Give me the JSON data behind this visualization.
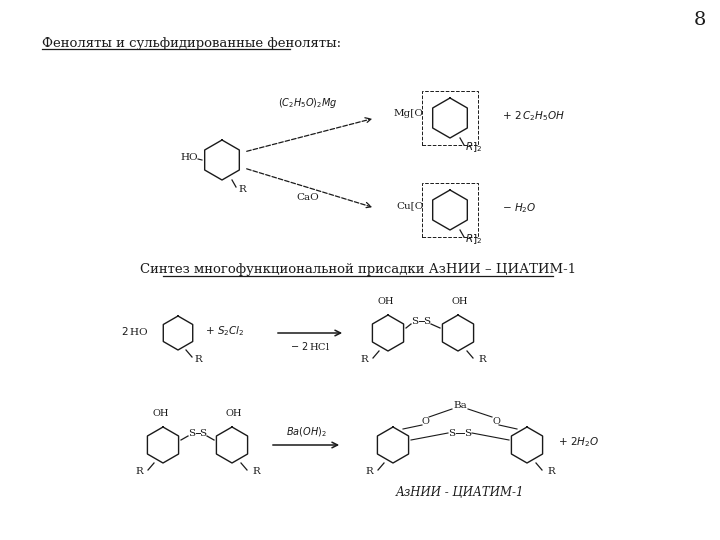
{
  "page_number": "8",
  "title1": "Феноляты и сульфидированные феноляты:",
  "title2": "Синтез многофункциональной присадки АзНИИ – ЦИАТИМ-1",
  "label_azniiciatim": "АзНИИ - ЦИАТИМ-1",
  "bg_color": "#ffffff",
  "text_color": "#1a1a1a",
  "font_size_title": 9.5,
  "font_size_text": 7.5,
  "font_size_page": 14
}
